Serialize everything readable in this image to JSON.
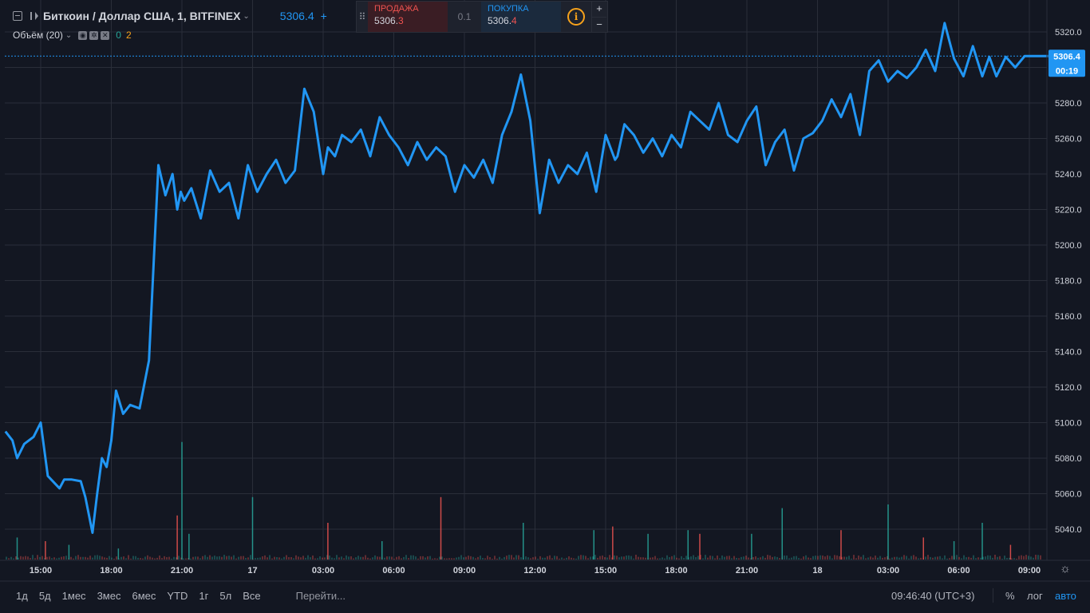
{
  "header": {
    "symbol_title": "Биткоин / Доллар США, 1, BITFINEX",
    "last_price": "5306.4",
    "plus": "+",
    "volume_label": "Объём (20)",
    "volume_value_a": "0",
    "volume_value_b": "2"
  },
  "trade_panel": {
    "sell_label": "ПРОДАЖА",
    "sell_price_main": "5306.",
    "sell_price_last": "3",
    "spread": "0.1",
    "buy_label": "ПОКУПКА",
    "buy_price_main": "5306.",
    "buy_price_last": "4",
    "info_glyph": "i",
    "plus_glyph": "+",
    "minus_glyph": "−"
  },
  "bottom_bar": {
    "periods": [
      "1д",
      "5д",
      "1мес",
      "3мес",
      "6мес",
      "YTD",
      "1г",
      "5л",
      "Все"
    ],
    "goto": "Перейти...",
    "clock": "09:46:40 (UTC+3)",
    "pct": "%",
    "log": "лог",
    "auto": "авто"
  },
  "colors": {
    "background": "#131722",
    "grid": "#2a2e39",
    "line": "#2196f3",
    "vol_up": "#26a69a",
    "vol_down": "#ef5350",
    "text": "#d1d4dc"
  },
  "chart_data": {
    "type": "line",
    "title": "",
    "xlabel": "",
    "ylabel": "",
    "ylim": [
      5027,
      5329
    ],
    "y_ticks": [
      5040,
      5060,
      5080,
      5100,
      5120,
      5140,
      5160,
      5180,
      5200,
      5220,
      5240,
      5260,
      5280,
      5300,
      5320
    ],
    "x_ticks": [
      "15:00",
      "18:00",
      "21:00",
      "17",
      "03:00",
      "06:00",
      "09:00",
      "12:00",
      "15:00",
      "18:00",
      "21:00",
      "18",
      "03:00",
      "06:00",
      "09:00"
    ],
    "x_tick_hours": [
      0,
      3,
      6,
      9,
      12,
      15,
      18,
      21,
      24,
      27,
      30,
      33,
      36,
      39,
      42
    ],
    "current_price_label": "5306.4",
    "countdown_label": "00:19",
    "current_price": 5306.4,
    "series": [
      {
        "x_hours": [
          -1.5,
          -1.2,
          -1.0,
          -0.7,
          -0.3,
          0.0,
          0.3,
          0.8,
          1.0,
          1.3,
          1.7,
          1.9,
          2.2,
          2.4,
          2.6,
          2.8,
          3.0,
          3.2,
          3.5,
          3.8,
          4.2,
          4.6,
          5.0,
          5.3,
          5.6,
          5.8,
          5.95,
          6.1,
          6.4,
          6.8,
          7.2,
          7.6,
          8.0,
          8.4,
          8.8,
          9.2,
          9.6,
          10.0,
          10.4,
          10.8,
          11.2,
          11.6,
          12.0,
          12.2,
          12.5,
          12.8,
          13.2,
          13.6,
          14.0,
          14.4,
          14.8,
          15.2,
          15.6,
          16.0,
          16.4,
          16.8,
          17.2,
          17.6,
          18.0,
          18.4,
          18.8,
          19.2,
          19.6,
          20.0,
          20.4,
          20.8,
          21.2,
          21.6,
          22.0,
          22.4,
          22.8,
          23.2,
          23.6,
          24.0,
          24.2,
          24.4,
          24.5,
          24.8,
          25.2,
          25.6,
          26.0,
          26.4,
          26.8,
          27.2,
          27.6,
          28.0,
          28.4,
          28.8,
          29.2,
          29.6,
          30.0,
          30.4,
          30.8,
          31.2,
          31.6,
          32.0,
          32.4,
          32.8,
          33.2,
          33.6,
          34.0,
          34.4,
          34.8,
          35.2,
          35.6,
          36.0,
          36.4,
          36.8,
          37.2,
          37.6,
          38.0,
          38.4,
          38.8,
          39.2,
          39.6,
          40.0,
          40.3,
          40.6,
          41.0,
          41.4,
          41.8,
          42.2,
          42.6,
          42.8
        ],
        "values": [
          5095,
          5090,
          5080,
          5088,
          5092,
          5100,
          5070,
          5063,
          5068,
          5068,
          5067,
          5058,
          5038,
          5060,
          5080,
          5075,
          5090,
          5118,
          5105,
          5110,
          5108,
          5135,
          5245,
          5228,
          5240,
          5220,
          5230,
          5225,
          5232,
          5215,
          5242,
          5230,
          5235,
          5215,
          5245,
          5230,
          5240,
          5248,
          5235,
          5242,
          5288,
          5275,
          5240,
          5255,
          5250,
          5262,
          5258,
          5265,
          5250,
          5272,
          5262,
          5255,
          5245,
          5258,
          5248,
          5255,
          5250,
          5230,
          5245,
          5238,
          5248,
          5235,
          5262,
          5275,
          5296,
          5270,
          5218,
          5248,
          5235,
          5245,
          5240,
          5252,
          5230,
          5262,
          5255,
          5248,
          5250,
          5268,
          5262,
          5252,
          5260,
          5250,
          5262,
          5255,
          5275,
          5270,
          5265,
          5280,
          5262,
          5258,
          5270,
          5278,
          5245,
          5258,
          5265,
          5242,
          5260,
          5263,
          5270,
          5282,
          5272,
          5285,
          5262,
          5298,
          5304,
          5292,
          5298,
          5294,
          5300,
          5310,
          5298,
          5325,
          5305,
          5295,
          5312,
          5295,
          5306,
          5295,
          5306,
          5300,
          5306.4,
          5306.4,
          5306.4,
          5306.4
        ]
      }
    ],
    "volume": {
      "ylim": [
        0,
        40
      ],
      "spikes_hours": [
        -1.0,
        0.2,
        1.2,
        3.3,
        5.8,
        6.0,
        6.3,
        9.0,
        12.2,
        14.5,
        17.0,
        20.5,
        23.5,
        24.3,
        25.8,
        27.5,
        28.0,
        30.2,
        31.5,
        34.0,
        36.0,
        37.5,
        38.8,
        40.0,
        41.2
      ],
      "spikes_values": [
        6,
        5,
        4,
        3,
        12,
        32,
        7,
        17,
        10,
        5,
        17,
        10,
        8,
        9,
        7,
        8,
        7,
        7,
        14,
        8,
        15,
        6,
        5,
        10,
        4
      ],
      "spikes_up": [
        true,
        false,
        true,
        true,
        false,
        true,
        true,
        true,
        false,
        true,
        false,
        true,
        true,
        false,
        true,
        true,
        false,
        true,
        true,
        false,
        true,
        false,
        true,
        true,
        false
      ]
    }
  }
}
